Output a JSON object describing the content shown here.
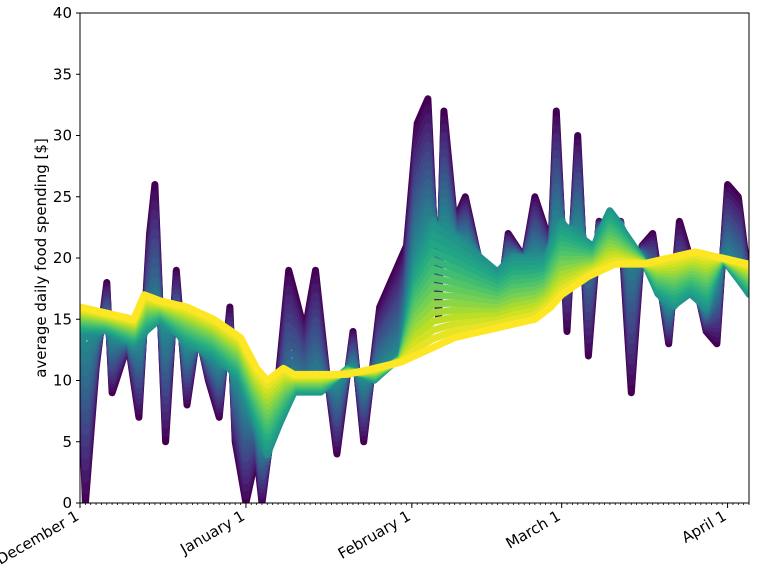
{
  "chart_data": {
    "type": "line",
    "ylabel": "average daily food spending [$]",
    "xlabel": "",
    "ylim": [
      0,
      40
    ],
    "yticks": [
      0,
      5,
      10,
      15,
      20,
      25,
      30,
      35,
      40
    ],
    "x_start": "December 1",
    "x_end": "April 5",
    "xticks": [
      {
        "label": "December 1",
        "day": 0
      },
      {
        "label": "January 1",
        "day": 31
      },
      {
        "label": "February 1",
        "day": 62
      },
      {
        "label": "March 1",
        "day": 90
      },
      {
        "label": "April 1",
        "day": 121
      }
    ],
    "grid": false,
    "colormap": "viridis",
    "series_count": 30,
    "series_style": "moving averages of increasing window, dark purple (short window) to yellow (long window)",
    "series_short_window": {
      "x": [
        0,
        1,
        3,
        5,
        6,
        9,
        11,
        13,
        14,
        16,
        18,
        20,
        22,
        24,
        26,
        28,
        29,
        31,
        33,
        34,
        37,
        39,
        42,
        44,
        46,
        48,
        51,
        53,
        56,
        58,
        61,
        63,
        65,
        67,
        68,
        70,
        72,
        75,
        78,
        80,
        83,
        85,
        88,
        89,
        91,
        93,
        95,
        97,
        99,
        101,
        103,
        105,
        107,
        110,
        112,
        114,
        117,
        119,
        121,
        123,
        125
      ],
      "y": [
        12,
        0,
        11,
        18,
        9,
        13,
        7,
        22,
        26,
        5,
        19,
        8,
        14,
        10,
        7,
        16,
        5,
        0,
        4,
        0,
        10,
        19,
        14,
        19,
        11,
        4,
        14,
        5,
        16,
        18,
        21,
        31,
        33,
        15,
        32,
        23,
        25,
        19,
        15,
        22,
        20,
        25,
        21,
        32,
        14,
        30,
        12,
        23,
        20,
        23,
        9,
        21,
        22,
        13,
        23,
        20,
        14,
        13,
        26,
        25,
        18
      ]
    },
    "series_mid_window": {
      "x": [
        0,
        5,
        10,
        15,
        20,
        25,
        30,
        35,
        40,
        45,
        50,
        55,
        60,
        63,
        66,
        69,
        72,
        75,
        78,
        81,
        84,
        87,
        90,
        93,
        96,
        99,
        102,
        105,
        108,
        111,
        114,
        117,
        120,
        125
      ],
      "y": [
        14,
        14,
        13,
        15,
        13,
        12,
        10,
        4,
        9,
        9,
        11,
        10,
        12,
        20,
        23,
        22,
        21,
        20,
        19,
        20,
        20,
        20,
        23,
        22,
        21,
        24,
        22,
        20,
        17,
        16,
        17,
        16,
        20,
        17
      ]
    },
    "series_long_window": {
      "x": [
        0,
        5,
        10,
        12,
        15,
        20,
        25,
        30,
        33,
        35,
        38,
        40,
        45,
        50,
        55,
        60,
        65,
        70,
        75,
        80,
        85,
        88,
        90,
        95,
        100,
        105,
        110,
        115,
        120,
        125
      ],
      "y": [
        16,
        15.5,
        15,
        17,
        16.5,
        16,
        15,
        13.5,
        11,
        10,
        11,
        10.5,
        10.5,
        10.5,
        11,
        11.5,
        12.5,
        13.5,
        14,
        14.5,
        15,
        16,
        17,
        18.5,
        19.5,
        19.5,
        20,
        20.5,
        20,
        19.5
      ]
    }
  }
}
